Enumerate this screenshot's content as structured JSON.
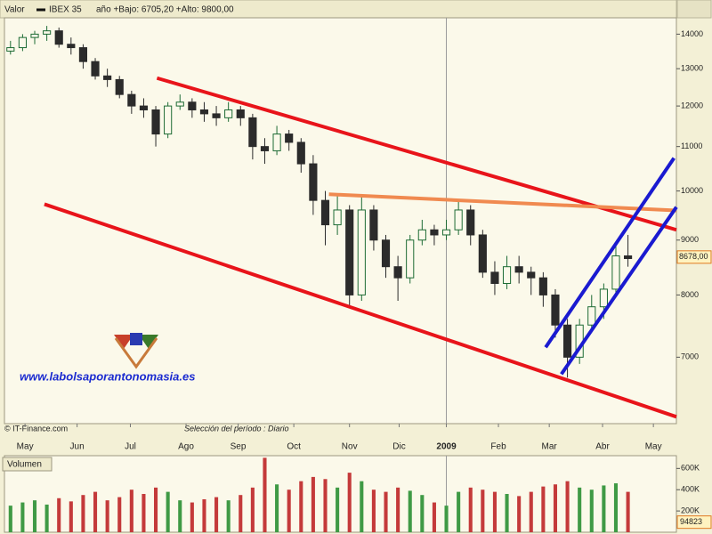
{
  "chart_data": [
    {
      "type": "candlestick",
      "header_label": "Valor",
      "series_name": "IBEX 35",
      "subtitle": "año +Bajo: 6705,20 +Alto: 9800,00",
      "source": "© IT-Finance.com",
      "period_note": "Selección del período : Diario",
      "watermark": "www.labolsaporantonomasia.es",
      "up_color": "#1d6b34",
      "down_color": "#2b2b2b",
      "open": [
        13500,
        13600,
        13900,
        14000,
        14100,
        13700,
        13600,
        13200,
        12800,
        12700,
        12300,
        12000,
        11900,
        11300,
        12000,
        12100,
        11900,
        11800,
        11700,
        11900,
        11700,
        11000,
        10900,
        11300,
        11100,
        10600,
        9800,
        9300,
        9600,
        8000,
        9600,
        9000,
        8500,
        8300,
        9000,
        9200,
        9100,
        9200,
        9600,
        9100,
        8400,
        8200,
        8500,
        8400,
        8300,
        8000,
        7500,
        7000,
        7500,
        7800,
        8100,
        8700
      ],
      "high": [
        13800,
        14000,
        14100,
        14250,
        14200,
        13900,
        13700,
        13300,
        13000,
        12800,
        12400,
        12200,
        12000,
        12100,
        12300,
        12200,
        12100,
        12000,
        12100,
        12000,
        11800,
        11200,
        11500,
        11400,
        11200,
        10800,
        10000,
        9900,
        9700,
        9900,
        9700,
        9100,
        8700,
        9100,
        9400,
        9300,
        9400,
        9800,
        9700,
        9200,
        8600,
        8700,
        8700,
        8500,
        8400,
        8100,
        7600,
        7600,
        8000,
        8200,
        8900,
        9100
      ],
      "low": [
        13400,
        13500,
        13700,
        13800,
        13600,
        13400,
        13000,
        12700,
        12500,
        12200,
        11800,
        11700,
        11000,
        11200,
        11900,
        11700,
        11600,
        11500,
        11600,
        11500,
        10700,
        10600,
        10800,
        10900,
        10400,
        9500,
        8900,
        9100,
        7800,
        7900,
        8800,
        8300,
        7900,
        8200,
        8900,
        8900,
        9000,
        9100,
        8900,
        8300,
        8000,
        8100,
        8200,
        8000,
        7800,
        7300,
        6700,
        6900,
        7400,
        7600,
        8000,
        8500
      ],
      "close": [
        13600,
        13900,
        14000,
        14100,
        13700,
        13600,
        13200,
        12800,
        12700,
        12300,
        12000,
        11900,
        11300,
        12000,
        12100,
        11900,
        11800,
        11700,
        11900,
        11700,
        11000,
        10900,
        11300,
        11100,
        10600,
        9800,
        9300,
        9600,
        8000,
        9600,
        9000,
        8500,
        8300,
        9000,
        9200,
        9100,
        9200,
        9600,
        9100,
        8400,
        8200,
        8500,
        8400,
        8300,
        8000,
        7500,
        7000,
        7500,
        7800,
        8100,
        8700,
        8650
      ],
      "log_y": true,
      "ylim": [
        6070,
        14500
      ],
      "yticks": [
        7000,
        8000,
        9000,
        10000,
        11000,
        12000,
        13000,
        14000
      ],
      "xlim": [
        0,
        55.5
      ],
      "xticks": [
        {
          "value": 1.7,
          "label": "May"
        },
        {
          "value": 6.0,
          "label": "Jun"
        },
        {
          "value": 10.4,
          "label": "Jul"
        },
        {
          "value": 15.0,
          "label": "Ago"
        },
        {
          "value": 19.3,
          "label": "Sep"
        },
        {
          "value": 23.9,
          "label": "Oct"
        },
        {
          "value": 28.5,
          "label": "Nov"
        },
        {
          "value": 32.6,
          "label": "Dic"
        },
        {
          "value": 36.5,
          "label": "2009"
        },
        {
          "value": 40.8,
          "label": "Feb"
        },
        {
          "value": 45.0,
          "label": "Mar"
        },
        {
          "value": 49.4,
          "label": "Abr"
        },
        {
          "value": 53.6,
          "label": "May"
        }
      ],
      "last_value": {
        "value": 8678,
        "label": "8678,00"
      },
      "trendlines": [
        {
          "color": "#e8141a",
          "x": [
            12.6,
            55.5
          ],
          "y": [
            12740,
            9200
          ]
        },
        {
          "color": "#e8141a",
          "x": [
            3.3,
            55.5
          ],
          "y": [
            9720,
            6160
          ]
        },
        {
          "color": "#f08a50",
          "x": [
            26.8,
            55.5
          ],
          "y": [
            9930,
            9590
          ]
        },
        {
          "color": "#1a1ad0",
          "x": [
            44.7,
            55.3
          ],
          "y": [
            7150,
            10730
          ]
        },
        {
          "color": "#1a1ad0",
          "x": [
            46.0,
            55.5
          ],
          "y": [
            6750,
            9660
          ]
        }
      ]
    },
    {
      "type": "bar",
      "title": "Volumen",
      "values": [
        250000,
        280000,
        300000,
        260000,
        320000,
        290000,
        350000,
        380000,
        300000,
        330000,
        400000,
        360000,
        420000,
        380000,
        300000,
        280000,
        310000,
        330000,
        300000,
        350000,
        420000,
        700000,
        450000,
        400000,
        480000,
        520000,
        500000,
        420000,
        560000,
        480000,
        400000,
        380000,
        420000,
        390000,
        350000,
        280000,
        250000,
        380000,
        420000,
        400000,
        380000,
        360000,
        340000,
        380000,
        430000,
        450000,
        480000,
        420000,
        400000,
        440000,
        460000,
        380000
      ],
      "up_color": "#3f9a45",
      "down_color": "#c43a3a",
      "ylim": [
        0,
        720000
      ],
      "yticks": [
        {
          "value": 200000,
          "label": "200K"
        },
        {
          "value": 400000,
          "label": "400K"
        },
        {
          "value": 600000,
          "label": "600K"
        }
      ],
      "last_value": 94823
    }
  ]
}
